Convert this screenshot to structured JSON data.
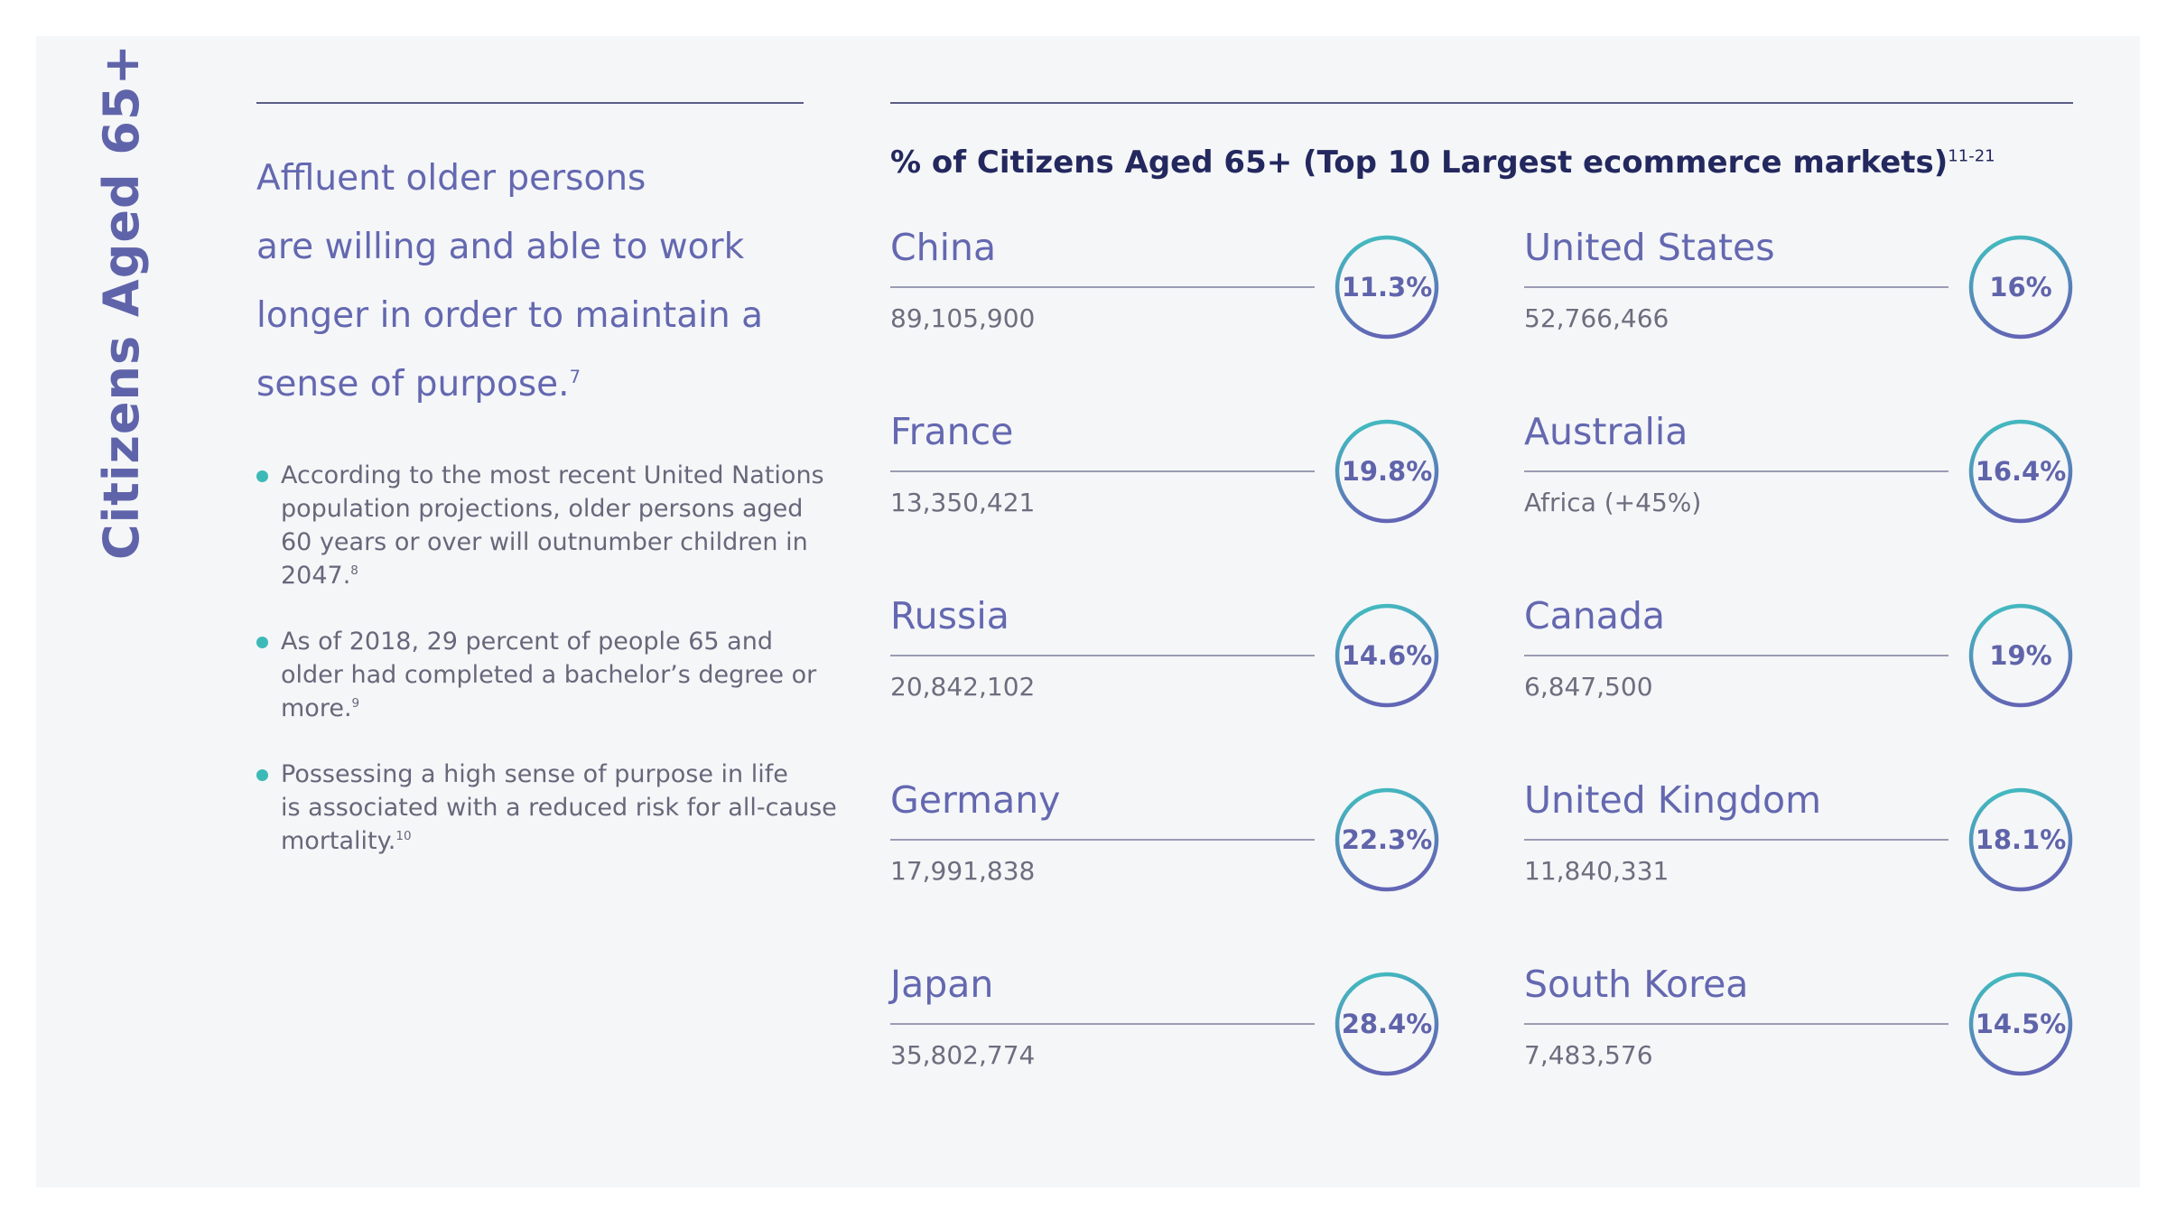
{
  "side_title": "Citizens Aged 65+",
  "intro": {
    "lines": [
      "Affluent older persons",
      "are willing and able to work",
      "longer in order to maintain a",
      "sense of purpose."
    ],
    "ref": "7"
  },
  "bullets": [
    {
      "lines": [
        "According to the most recent United Nations",
        "population projections, older persons aged",
        "60 years or over will outnumber children in",
        "2047."
      ],
      "ref": "8"
    },
    {
      "lines": [
        "As of 2018, 29 percent of people 65 and",
        "older had completed a bachelor’s degree or",
        "more."
      ],
      "ref": "9"
    },
    {
      "lines": [
        "Possessing a high sense of purpose in life",
        "is associated with a reduced risk for all-cause",
        "mortality."
      ],
      "ref": "10"
    }
  ],
  "chart": {
    "title": "% of Citizens Aged 65+ (Top 10 Largest ecommerce markets)",
    "title_ref": "11-21"
  },
  "colors": {
    "ring_start": "#3fc3c0",
    "ring_end": "#6266b5",
    "accent_text": "#6468b0",
    "bullet": "#3dbab8"
  },
  "chart_data": {
    "type": "table",
    "title": "% of Citizens Aged 65+ (Top 10 Largest ecommerce markets)",
    "rows": [
      {
        "country": "China",
        "population": "89,105,900",
        "percent": "11.3%"
      },
      {
        "country": "United States",
        "population": "52,766,466",
        "percent": "16%"
      },
      {
        "country": "France",
        "population": "13,350,421",
        "percent": "19.8%"
      },
      {
        "country": "Australia",
        "population": "Africa (+45%)",
        "percent": "16.4%"
      },
      {
        "country": "Russia",
        "population": "20,842,102",
        "percent": "14.6%"
      },
      {
        "country": "Canada",
        "population": "6,847,500",
        "percent": "19%"
      },
      {
        "country": "Germany",
        "population": "17,991,838",
        "percent": "22.3%"
      },
      {
        "country": "United Kingdom",
        "population": "11,840,331",
        "percent": "18.1%"
      },
      {
        "country": "Japan",
        "population": "35,802,774",
        "percent": "28.4%"
      },
      {
        "country": "South Korea",
        "population": "7,483,576",
        "percent": "14.5%"
      }
    ]
  }
}
